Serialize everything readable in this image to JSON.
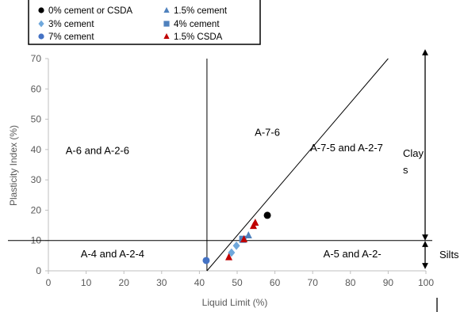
{
  "chart_data": {
    "type": "scatter",
    "xlabel": "Liquid Limit (%)",
    "ylabel": "Plasticity Index (%)",
    "xlim": [
      0,
      100
    ],
    "ylim": [
      0,
      70
    ],
    "x_ticks": [
      "0",
      "10",
      "20",
      "30",
      "40",
      "50",
      "60",
      "70",
      "80",
      "90",
      "100"
    ],
    "y_ticks": [
      "0",
      "10",
      "20",
      "30",
      "40",
      "50",
      "60",
      "70"
    ],
    "grid": false,
    "legend_position": "top",
    "series": [
      {
        "name": "0% cement or CSDA",
        "marker": "circle",
        "color": "#000000",
        "points": [
          {
            "x": 58,
            "y": 18.3
          }
        ]
      },
      {
        "name": "1.5% cement",
        "marker": "triangle",
        "color": "#4f81bd",
        "points": [
          {
            "x": 53,
            "y": 11.7
          }
        ]
      },
      {
        "name": "3% cement",
        "marker": "diamond",
        "color": "#6fa8dc",
        "points": [
          {
            "x": 48.5,
            "y": 6
          },
          {
            "x": 49.8,
            "y": 8.3
          }
        ]
      },
      {
        "name": "4% cement",
        "marker": "square",
        "color": "#4f81bd",
        "points": [
          {
            "x": 51.5,
            "y": 10.4
          }
        ]
      },
      {
        "name": "7% cement",
        "marker": "circle",
        "color": "#4472c4",
        "points": [
          {
            "x": 41.8,
            "y": 3.4
          }
        ]
      },
      {
        "name": "1.5% CSDA",
        "marker": "triangle",
        "color": "#c00000",
        "points": [
          {
            "x": 47.8,
            "y": 4.5
          },
          {
            "x": 51.8,
            "y": 10.4
          },
          {
            "x": 54.3,
            "y": 14.8
          },
          {
            "x": 54.8,
            "y": 15.9
          }
        ]
      }
    ],
    "reference_lines": {
      "vertical_x": 42,
      "horizontal_y": 10,
      "a_line": [
        {
          "x": 42,
          "y": 0
        },
        {
          "x": 90,
          "y": 70
        }
      ]
    },
    "regions": [
      {
        "label": "A-6 and A-2-6",
        "x": 13,
        "y": 38.5
      },
      {
        "label": "A-7-6",
        "x": 58,
        "y": 44.5
      },
      {
        "label": "A-7-5 and A-2-7",
        "x": 79,
        "y": 39.5
      },
      {
        "label": "A-4 and A-2-4",
        "x": 17,
        "y": 4.5
      },
      {
        "label": "A-5 and A-2-",
        "x": 80.5,
        "y": 4.5
      }
    ],
    "side_labels": {
      "clays_line1": "Clay",
      "clays_line2": "s",
      "silts": "Silts"
    }
  }
}
